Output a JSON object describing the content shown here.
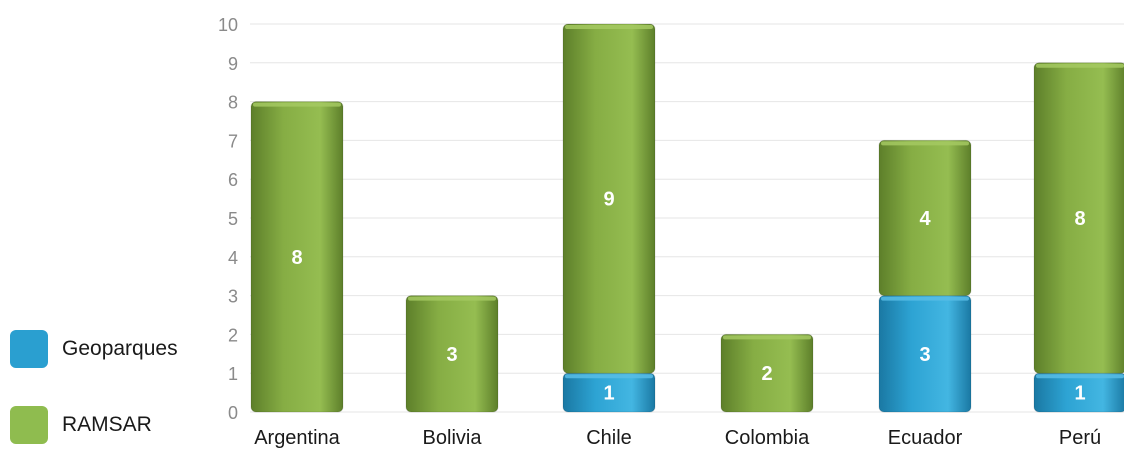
{
  "chart_data": {
    "type": "bar",
    "stacked": true,
    "categories": [
      "Argentina",
      "Bolivia",
      "Chile",
      "Colombia",
      "Ecuador",
      "Perú"
    ],
    "series": [
      {
        "name": "Geoparques",
        "values": [
          0,
          0,
          1,
          0,
          3,
          1
        ],
        "color": "#2a9fd0"
      },
      {
        "name": "RAMSAR",
        "values": [
          8,
          3,
          9,
          2,
          4,
          8
        ],
        "color": "#7ea53c"
      }
    ],
    "yticks": [
      "0",
      "1",
      "2",
      "3",
      "4",
      "5",
      "6",
      "7",
      "8",
      "9",
      "10"
    ],
    "ylim": [
      0,
      10.5
    ],
    "grid": true,
    "legend_position": "left"
  },
  "legend": {
    "items": [
      {
        "label": "Geoparques",
        "color": "#2a9fd0"
      },
      {
        "label": "RAMSAR",
        "color": "#8fbc4f"
      }
    ]
  }
}
